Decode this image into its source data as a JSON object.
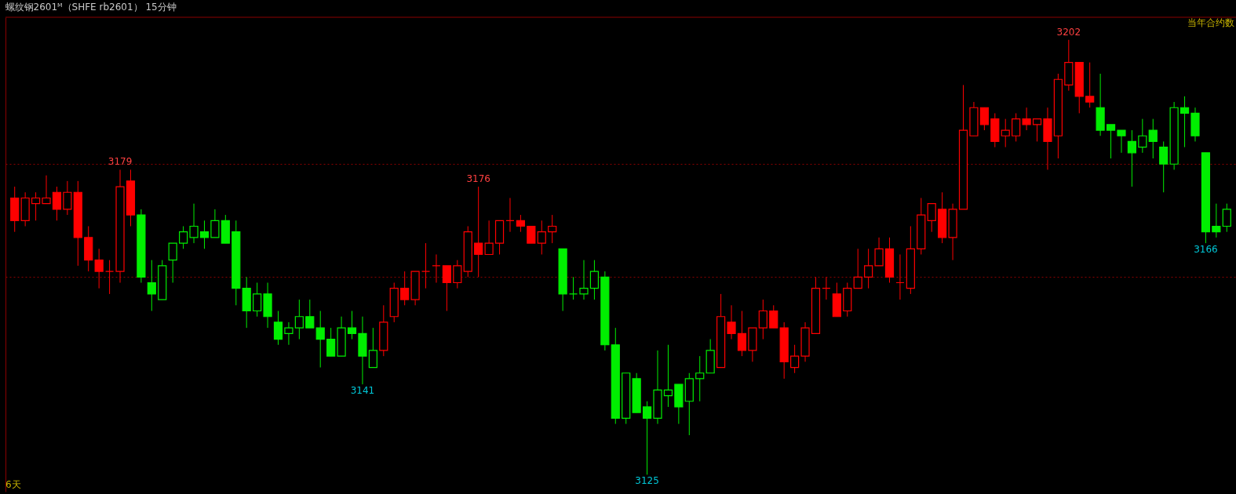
{
  "chart_data": {
    "type": "candlestick",
    "title": "螺纹钢2601ᴹ（SHFE rb2601） 15分钟",
    "categories": [
      null,
      null,
      null,
      null,
      null,
      null,
      null,
      null,
      null,
      null,
      null,
      null,
      null,
      null,
      null,
      null,
      null,
      null,
      null,
      null,
      null,
      null,
      null,
      null,
      null,
      null,
      null,
      null,
      null,
      null,
      null,
      null,
      null,
      null,
      null,
      null,
      null,
      null,
      null,
      null,
      null,
      null,
      null,
      null,
      null,
      null,
      null,
      null,
      null,
      null,
      null,
      null,
      null,
      null,
      null,
      null,
      null,
      null,
      null,
      null,
      null,
      null,
      null,
      null,
      null,
      null,
      null,
      null,
      null,
      null,
      null,
      null,
      null,
      null,
      null,
      null,
      null,
      null,
      null,
      null,
      null,
      null,
      null,
      null,
      null,
      null,
      null,
      null,
      null,
      null,
      null,
      null,
      null,
      null,
      null,
      null,
      null,
      null,
      null,
      null,
      null,
      null,
      null,
      null,
      null,
      null,
      null,
      null,
      null,
      null,
      null,
      null,
      null,
      null,
      null,
      null
    ],
    "ohlc": [
      [
        3174,
        3176,
        3168,
        3170
      ],
      [
        3170,
        3175,
        3169,
        3174
      ],
      [
        3173,
        3175,
        3170,
        3174
      ],
      [
        3173,
        3178,
        3173,
        3174
      ],
      [
        3175,
        3176,
        3170,
        3172
      ],
      [
        3172,
        3177,
        3171,
        3175
      ],
      [
        3175,
        3177,
        3162,
        3167
      ],
      [
        3167,
        3169,
        3161,
        3163
      ],
      [
        3163,
        3165,
        3158,
        3161
      ],
      [
        3161,
        3163,
        3157,
        3161
      ],
      [
        3161,
        3179,
        3159,
        3176
      ],
      [
        3177,
        3179,
        3169,
        3171
      ],
      [
        3171,
        3172,
        3159,
        3160
      ],
      [
        3159,
        3163,
        3154,
        3157
      ],
      [
        3156,
        3163,
        3156,
        3162
      ],
      [
        3163,
        3166,
        3159,
        3166
      ],
      [
        3166,
        3169,
        3165,
        3168
      ],
      [
        3167,
        3173,
        3166,
        3169
      ],
      [
        3168,
        3170,
        3165,
        3167
      ],
      [
        3167,
        3172,
        3167,
        3170
      ],
      [
        3170,
        3171,
        3166,
        3166
      ],
      [
        3168,
        3170,
        3155,
        3158
      ],
      [
        3158,
        3160,
        3151,
        3154
      ],
      [
        3154,
        3159,
        3153,
        3157
      ],
      [
        3157,
        3159,
        3151,
        3153
      ],
      [
        3152,
        3154,
        3148,
        3149
      ],
      [
        3150,
        3152,
        3148,
        3151
      ],
      [
        3151,
        3156,
        3149,
        3153
      ],
      [
        3153,
        3156,
        3151,
        3151
      ],
      [
        3151,
        3154,
        3144,
        3149
      ],
      [
        3149,
        3151,
        3146,
        3146
      ],
      [
        3146,
        3153,
        3146,
        3151
      ],
      [
        3151,
        3154,
        3149,
        3150
      ],
      [
        3150,
        3153,
        3141,
        3146
      ],
      [
        3144,
        3151,
        3144,
        3147
      ],
      [
        3147,
        3155,
        3146,
        3152
      ],
      [
        3153,
        3159,
        3152,
        3158
      ],
      [
        3158,
        3161,
        3155,
        3156
      ],
      [
        3156,
        3161,
        3155,
        3161
      ],
      [
        3161,
        3166,
        3158,
        3161
      ],
      [
        3162,
        3164,
        3159,
        3162
      ],
      [
        3162,
        3162,
        3154,
        3159
      ],
      [
        3159,
        3163,
        3158,
        3162
      ],
      [
        3161,
        3169,
        3160,
        3168
      ],
      [
        3166,
        3176,
        3160,
        3164
      ],
      [
        3164,
        3170,
        3164,
        3166
      ],
      [
        3166,
        3170,
        3164,
        3170
      ],
      [
        3170,
        3174,
        3168,
        3170
      ],
      [
        3170,
        3171,
        3168,
        3169
      ],
      [
        3169,
        3169,
        3166,
        3166
      ],
      [
        3166,
        3170,
        3164,
        3168
      ],
      [
        3168,
        3171,
        3166,
        3169
      ],
      [
        3165,
        3165,
        3154,
        3157
      ],
      [
        3157,
        3160,
        3156,
        3157
      ],
      [
        3157,
        3163,
        3156,
        3158
      ],
      [
        3158,
        3163,
        3156,
        3161
      ],
      [
        3160,
        3161,
        3147,
        3148
      ],
      [
        3148,
        3151,
        3134,
        3135
      ],
      [
        3135,
        3143,
        3134,
        3143
      ],
      [
        3142,
        3143,
        3136,
        3136
      ],
      [
        3137,
        3138,
        3125,
        3135
      ],
      [
        3135,
        3147,
        3134,
        3140
      ],
      [
        3139,
        3148,
        3137,
        3140
      ],
      [
        3141,
        3141,
        3134,
        3137
      ],
      [
        3138,
        3143,
        3132,
        3142
      ],
      [
        3142,
        3146,
        3138,
        3143
      ],
      [
        3143,
        3149,
        3143,
        3147
      ],
      [
        3144,
        3157,
        3144,
        3153
      ],
      [
        3152,
        3155,
        3149,
        3150
      ],
      [
        3150,
        3154,
        3146,
        3147
      ],
      [
        3147,
        3151,
        3145,
        3151
      ],
      [
        3151,
        3156,
        3149,
        3154
      ],
      [
        3154,
        3155,
        3151,
        3151
      ],
      [
        3151,
        3152,
        3142,
        3145
      ],
      [
        3144,
        3148,
        3143,
        3146
      ],
      [
        3146,
        3152,
        3145,
        3151
      ],
      [
        3150,
        3160,
        3150,
        3158
      ],
      [
        3158,
        3160,
        3156,
        3158
      ],
      [
        3157,
        3159,
        3153,
        3153
      ],
      [
        3154,
        3159,
        3153,
        3158
      ],
      [
        3158,
        3165,
        3158,
        3160
      ],
      [
        3160,
        3165,
        3158,
        3162
      ],
      [
        3162,
        3167,
        3162,
        3165
      ],
      [
        3165,
        3167,
        3159,
        3160
      ],
      [
        3159,
        3164,
        3156,
        3159
      ],
      [
        3158,
        3169,
        3157,
        3165
      ],
      [
        3165,
        3174,
        3164,
        3171
      ],
      [
        3170,
        3173,
        3168,
        3173
      ],
      [
        3172,
        3175,
        3166,
        3167
      ],
      [
        3167,
        3173,
        3163,
        3172
      ],
      [
        3172,
        3194,
        3172,
        3186
      ],
      [
        3185,
        3191,
        3185,
        3190
      ],
      [
        3190,
        3190,
        3186,
        3187
      ],
      [
        3188,
        3189,
        3183,
        3184
      ],
      [
        3185,
        3188,
        3183,
        3186
      ],
      [
        3185,
        3189,
        3184,
        3188
      ],
      [
        3188,
        3190,
        3186,
        3187
      ],
      [
        3187,
        3188,
        3184,
        3188
      ],
      [
        3188,
        3190,
        3179,
        3184
      ],
      [
        3185,
        3196,
        3181,
        3195
      ],
      [
        3194,
        3202,
        3193,
        3198
      ],
      [
        3198,
        3198,
        3189,
        3192
      ],
      [
        3192,
        3198,
        3190,
        3191
      ],
      [
        3190,
        3196,
        3185,
        3186
      ],
      [
        3187,
        3187,
        3181,
        3186
      ],
      [
        3186,
        3186,
        3182,
        3185
      ],
      [
        3184,
        3186,
        3176,
        3182
      ],
      [
        3183,
        3188,
        3182,
        3185
      ],
      [
        3186,
        3188,
        3181,
        3184
      ],
      [
        3183,
        3184,
        3175,
        3180
      ],
      [
        3180,
        3191,
        3179,
        3190
      ],
      [
        3190,
        3192,
        3183,
        3189
      ],
      [
        3189,
        3190,
        3184,
        3185
      ],
      [
        3182,
        3182,
        3166,
        3168
      ],
      [
        3169,
        3173,
        3167,
        3168
      ],
      [
        3169,
        3173,
        3168,
        3172
      ]
    ],
    "colors": [
      "#ff0000",
      "#ff0000",
      "#ff0000",
      "#ff0000",
      "#ff0000",
      "#ff0000",
      "#ff0000",
      "#ff0000",
      "#ff0000",
      "#ff0000",
      "#ff0000",
      "#ff0000",
      "#00ee00",
      "#00ee00",
      "#00ee00",
      "#00ee00",
      "#00ee00",
      "#00ee00",
      "#00ee00",
      "#00ee00",
      "#00ee00",
      "#00ee00",
      "#00ee00",
      "#00ee00",
      "#00ee00",
      "#00ee00",
      "#00ee00",
      "#00ee00",
      "#00ee00",
      "#00ee00",
      "#00ee00",
      "#00ee00",
      "#00ee00",
      "#00ee00",
      "#00ee00",
      "#ff0000",
      "#ff0000",
      "#ff0000",
      "#ff0000",
      "#ff0000",
      "#ff0000",
      "#ff0000",
      "#ff0000",
      "#ff0000",
      "#ff0000",
      "#ff0000",
      "#ff0000",
      "#ff0000",
      "#ff0000",
      "#ff0000",
      "#ff0000",
      "#ff0000",
      "#00ee00",
      "#00ee00",
      "#00ee00",
      "#00ee00",
      "#00ee00",
      "#00ee00",
      "#00ee00",
      "#00ee00",
      "#00ee00",
      "#00ee00",
      "#00ee00",
      "#00ee00",
      "#00ee00",
      "#00ee00",
      "#00ee00",
      "#ff0000",
      "#ff0000",
      "#ff0000",
      "#ff0000",
      "#ff0000",
      "#ff0000",
      "#ff0000",
      "#ff0000",
      "#ff0000",
      "#ff0000",
      "#ff0000",
      "#ff0000",
      "#ff0000",
      "#ff0000",
      "#ff0000",
      "#ff0000",
      "#ff0000",
      "#ff0000",
      "#ff0000",
      "#ff0000",
      "#ff0000",
      "#ff0000",
      "#ff0000",
      "#ff0000",
      "#ff0000",
      "#ff0000",
      "#ff0000",
      "#ff0000",
      "#ff0000",
      "#ff0000",
      "#ff0000",
      "#ff0000",
      "#ff0000",
      "#ff0000",
      "#ff0000",
      "#ff0000",
      "#00ee00",
      "#00ee00",
      "#00ee00",
      "#00ee00",
      "#00ee00",
      "#00ee00",
      "#00ee00",
      "#00ee00",
      "#00ee00",
      "#00ee00",
      "#00ee00",
      "#00ee00",
      "#00ee00"
    ],
    "ylim": [
      3122,
      3206
    ],
    "yticks": [
      {
        "value": 3160,
        "label": null
      },
      {
        "value": 3180,
        "label": null
      }
    ],
    "grid": "y",
    "tick_labels": false,
    "annotations": [
      {
        "text": "3179",
        "y": 3179
      },
      {
        "text": "3176",
        "y": 3176
      },
      {
        "text": "3141",
        "y": 3141
      },
      {
        "text": "3125",
        "y": 3125
      },
      {
        "text": "3202",
        "y": 3202
      },
      {
        "text": "3166",
        "y": 3166
      },
      "当年合约数",
      "6天"
    ]
  }
}
